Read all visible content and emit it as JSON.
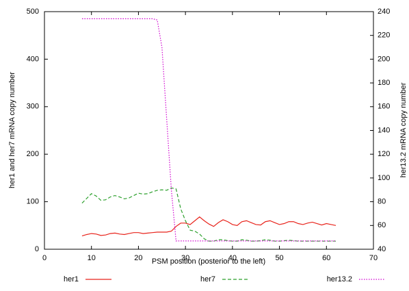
{
  "chart_data": {
    "type": "line",
    "x_label": "PSM position (posterior to the left)",
    "y_label": "her1 and her7 mRNA copy number",
    "y2_label": "her13.2 mRNA copy number",
    "xlim": [
      0,
      70
    ],
    "xticks": [
      0,
      10,
      20,
      30,
      40,
      50,
      60,
      70
    ],
    "ylim": [
      0,
      500
    ],
    "yticks": [
      0,
      100,
      200,
      300,
      400,
      500
    ],
    "y2lim": [
      40,
      240
    ],
    "y2ticks": [
      40,
      60,
      80,
      100,
      120,
      140,
      160,
      180,
      200,
      220,
      240
    ],
    "grid": false,
    "legend": "bottom",
    "x": [
      8,
      9,
      10,
      11,
      12,
      13,
      14,
      15,
      16,
      17,
      18,
      19,
      20,
      21,
      22,
      23,
      24,
      25,
      26,
      27,
      28,
      29,
      30,
      31,
      32,
      33,
      34,
      35,
      36,
      37,
      38,
      39,
      40,
      41,
      42,
      43,
      44,
      45,
      46,
      47,
      48,
      49,
      50,
      51,
      52,
      53,
      54,
      55,
      56,
      57,
      58,
      59,
      60,
      61,
      62
    ],
    "series": [
      {
        "name": "her1",
        "color": "#e8231b",
        "dash": "solid",
        "values": [
          28,
          31,
          33,
          32,
          29,
          30,
          33,
          34,
          32,
          31,
          33,
          35,
          35,
          33,
          34,
          35,
          36,
          36,
          36,
          38,
          48,
          55,
          55,
          52,
          60,
          68,
          60,
          53,
          48,
          56,
          62,
          58,
          52,
          50,
          58,
          60,
          56,
          52,
          51,
          58,
          60,
          56,
          52,
          54,
          58,
          58,
          54,
          52,
          55,
          57,
          54,
          51,
          54,
          52,
          50
        ]
      },
      {
        "name": "her7",
        "color": "#2ca02c",
        "dash": "dashed",
        "values": [
          97,
          107,
          117,
          112,
          103,
          104,
          110,
          113,
          110,
          106,
          108,
          113,
          118,
          116,
          117,
          121,
          124,
          125,
          124,
          129,
          127,
          85,
          60,
          40,
          38,
          32,
          22,
          17,
          17,
          20,
          20,
          18,
          17,
          17,
          20,
          19,
          17,
          17,
          18,
          20,
          19,
          17,
          17,
          18,
          19,
          18,
          17,
          17,
          17,
          17,
          17,
          17,
          17,
          17,
          17
        ]
      },
      {
        "name": "her13.2",
        "color": "#d000d0",
        "dash": "dotted",
        "axis": "y2",
        "values": [
          234,
          234,
          234,
          234,
          234,
          234,
          234,
          234,
          234,
          234,
          234,
          234,
          234,
          234,
          234,
          234,
          233,
          210,
          150,
          90,
          47,
          47,
          47,
          47,
          47,
          47,
          47,
          47,
          47,
          47,
          47,
          47,
          47,
          47,
          47,
          47,
          47,
          47,
          47,
          47,
          47,
          47,
          47,
          47,
          47,
          47,
          47,
          47,
          47,
          47,
          47,
          47,
          47,
          47,
          47
        ]
      }
    ]
  }
}
